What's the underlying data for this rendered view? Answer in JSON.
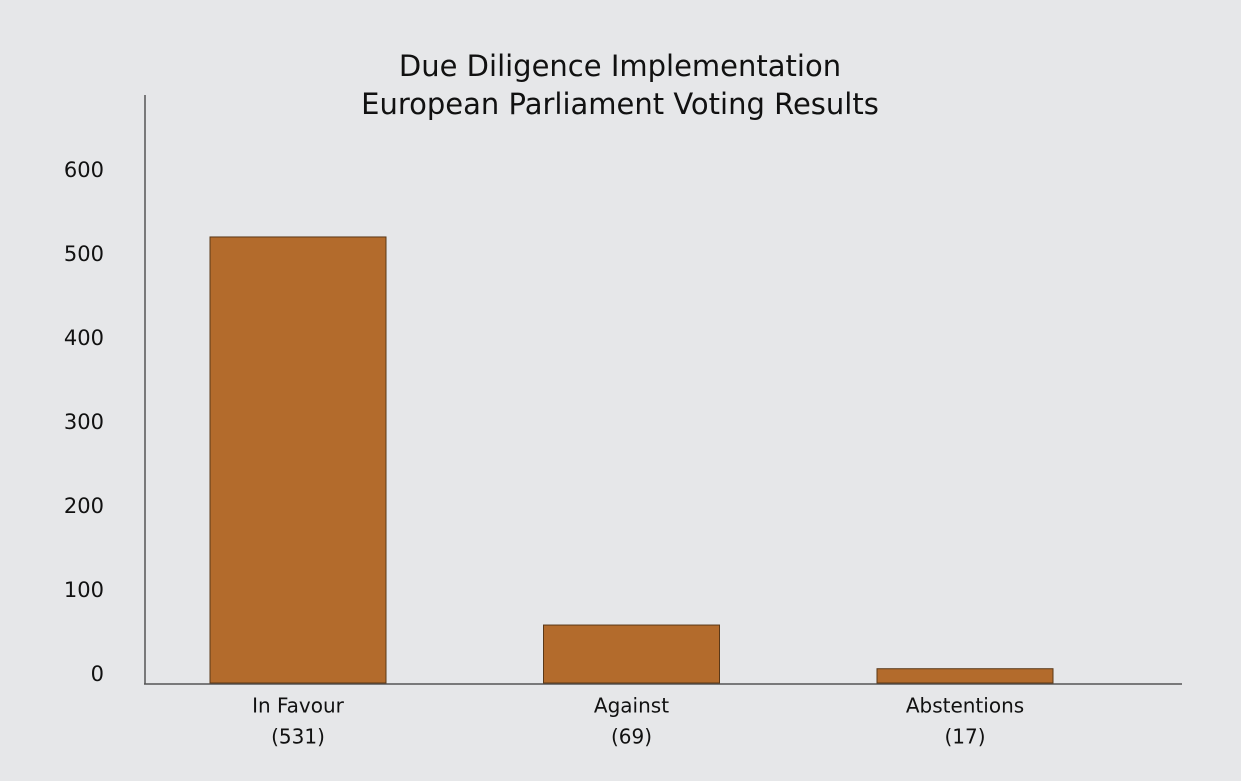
{
  "chart_data": {
    "type": "bar",
    "title": [
      "Due Diligence Implementation",
      "European Parliament Voting Results"
    ],
    "categories": [
      "In Favour",
      "Against",
      "Abstentions"
    ],
    "values": [
      531,
      69,
      17
    ],
    "value_labels": [
      "(531)",
      "(69)",
      "(17)"
    ],
    "color": "#b36b2c",
    "ylim": [
      0,
      700
    ],
    "yticks": [
      0,
      100,
      200,
      300,
      400,
      500,
      600
    ],
    "grid": false
  }
}
